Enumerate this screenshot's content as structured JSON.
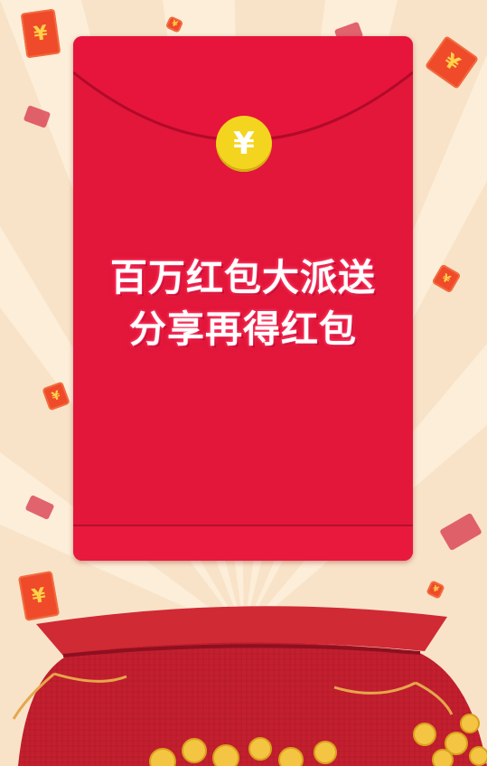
{
  "headline": {
    "line1": "百万红包大派送",
    "line2": "分享再得红包"
  },
  "coin_symbol": "¥",
  "decorations": {
    "envelope_icon": "red-envelope-icon",
    "coin_icon": "gold-coin-icon",
    "bag_icon": "lucky-bag-icon"
  },
  "colors": {
    "envelope": "#e2173a",
    "coin": "#f3d51f",
    "background": "#f8e3c8",
    "bag": "#c9202f"
  }
}
